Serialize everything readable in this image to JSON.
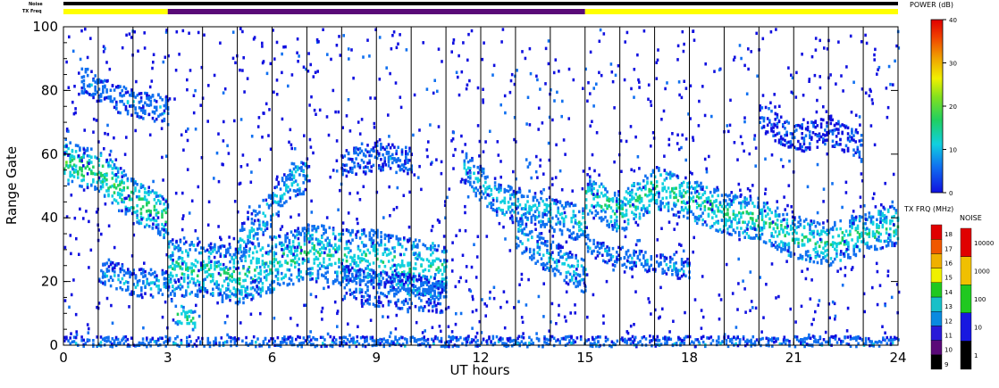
{
  "chart_data": {
    "type": "heatmap",
    "xlabel": "UT hours",
    "ylabel": "Range Gate",
    "xlim": [
      0,
      24
    ],
    "ylim": [
      0,
      100
    ],
    "x_ticks": [
      "0",
      "3",
      "6",
      "9",
      "12",
      "15",
      "18",
      "21",
      "24"
    ],
    "x_tick_values": [
      0,
      3,
      6,
      9,
      12,
      15,
      18,
      21,
      24
    ],
    "y_ticks": [
      "0",
      "20",
      "40",
      "60",
      "80",
      "100"
    ],
    "y_tick_values": [
      0,
      20,
      40,
      60,
      80,
      100
    ],
    "scan_boundaries_ut": [
      1,
      2,
      3,
      4,
      5,
      6,
      7,
      8,
      9,
      10,
      11,
      12,
      13,
      14,
      15,
      16,
      17,
      18,
      19,
      20,
      21,
      22,
      23
    ],
    "status_bars": {
      "noise_label": "Noise",
      "txfreq_label": "TX Freq",
      "segments": [
        {
          "start": 0,
          "end": 3,
          "color": "#ffff00"
        },
        {
          "start": 3,
          "end": 15,
          "color": "#5a0a78"
        },
        {
          "start": 15,
          "end": 24,
          "color": "#ffff00"
        }
      ]
    },
    "echo_bands": [
      {
        "points": [
          [
            0,
            58
          ],
          [
            1,
            55
          ],
          [
            2,
            46
          ],
          [
            3,
            40
          ]
        ],
        "width": 6,
        "power": 15
      },
      {
        "points": [
          [
            0.5,
            84
          ],
          [
            1.5,
            78
          ],
          [
            3,
            74
          ]
        ],
        "width": 4,
        "power": 6
      },
      {
        "points": [
          [
            1,
            24
          ],
          [
            2,
            20
          ],
          [
            3,
            20
          ]
        ],
        "width": 4,
        "power": 7
      },
      {
        "points": [
          [
            3,
            25
          ],
          [
            4,
            24
          ],
          [
            5,
            22
          ],
          [
            6,
            26
          ],
          [
            7,
            30
          ],
          [
            8,
            28
          ],
          [
            9,
            28
          ],
          [
            10,
            25
          ],
          [
            11,
            24
          ]
        ],
        "width": 8,
        "power": 12
      },
      {
        "points": [
          [
            5,
            32
          ],
          [
            6,
            44
          ],
          [
            6.5,
            52
          ],
          [
            7,
            54
          ]
        ],
        "width": 5,
        "power": 9
      },
      {
        "points": [
          [
            8,
            57
          ],
          [
            9,
            60
          ],
          [
            10,
            58
          ]
        ],
        "width": 4,
        "power": 5
      },
      {
        "points": [
          [
            8,
            20
          ],
          [
            9,
            18
          ],
          [
            10,
            17
          ],
          [
            11,
            16
          ]
        ],
        "width": 5,
        "power": 6
      },
      {
        "points": [
          [
            3.2,
            10
          ],
          [
            3.8,
            8
          ]
        ],
        "width": 3,
        "power": 15
      },
      {
        "points": [
          [
            11.5,
            56
          ],
          [
            12.5,
            46
          ],
          [
            13.5,
            44
          ],
          [
            14.5,
            40
          ],
          [
            15,
            38
          ]
        ],
        "width": 5,
        "power": 10
      },
      {
        "points": [
          [
            13,
            36
          ],
          [
            14,
            28
          ],
          [
            15,
            22
          ]
        ],
        "width": 5,
        "power": 9
      },
      {
        "points": [
          [
            15,
            48
          ],
          [
            16,
            42
          ],
          [
            17,
            50
          ],
          [
            18,
            46
          ],
          [
            19,
            42
          ],
          [
            20,
            40
          ],
          [
            21,
            34
          ],
          [
            22,
            32
          ],
          [
            23,
            36
          ],
          [
            24,
            38
          ]
        ],
        "width": 6,
        "power": 13
      },
      {
        "points": [
          [
            15,
            32
          ],
          [
            16,
            28
          ],
          [
            17,
            26
          ],
          [
            18,
            24
          ]
        ],
        "width": 3,
        "power": 7
      },
      {
        "points": [
          [
            20,
            72
          ],
          [
            21,
            65
          ],
          [
            22,
            68
          ],
          [
            23,
            62
          ]
        ],
        "width": 4,
        "power": 3
      },
      {
        "points": [
          [
            0,
            1
          ],
          [
            24,
            1
          ]
        ],
        "width": 2,
        "power": 6
      }
    ],
    "power_colorbar": {
      "title": "POWER (dB)",
      "range": [
        0,
        40
      ],
      "ticks": [
        "0",
        "10",
        "20",
        "30",
        "40"
      ]
    },
    "txfreq_colorbar": {
      "title": "TX FRQ (MHz)",
      "levels": [
        "9",
        "10",
        "11",
        "12",
        "13",
        "14",
        "15",
        "16",
        "17",
        "18"
      ],
      "colors": [
        "#000000",
        "#5a0a78",
        "#2a1ad8",
        "#0a8ae0",
        "#18c0c8",
        "#20c820",
        "#f0f000",
        "#f0b000",
        "#f05800",
        "#e00000"
      ]
    },
    "noise_colorbar": {
      "title": "NOISE",
      "ticks": [
        "1",
        "10",
        "100",
        "1000",
        "10000"
      ],
      "colors": [
        "#000000",
        "#1818e0",
        "#20c820",
        "#f0c000",
        "#e00000"
      ]
    },
    "colors": {
      "power_scale": [
        "#1010e0",
        "#1070f0",
        "#10d0e0",
        "#20d060",
        "#60e020",
        "#e0f000",
        "#f0a000",
        "#f05000",
        "#e01010"
      ]
    }
  }
}
